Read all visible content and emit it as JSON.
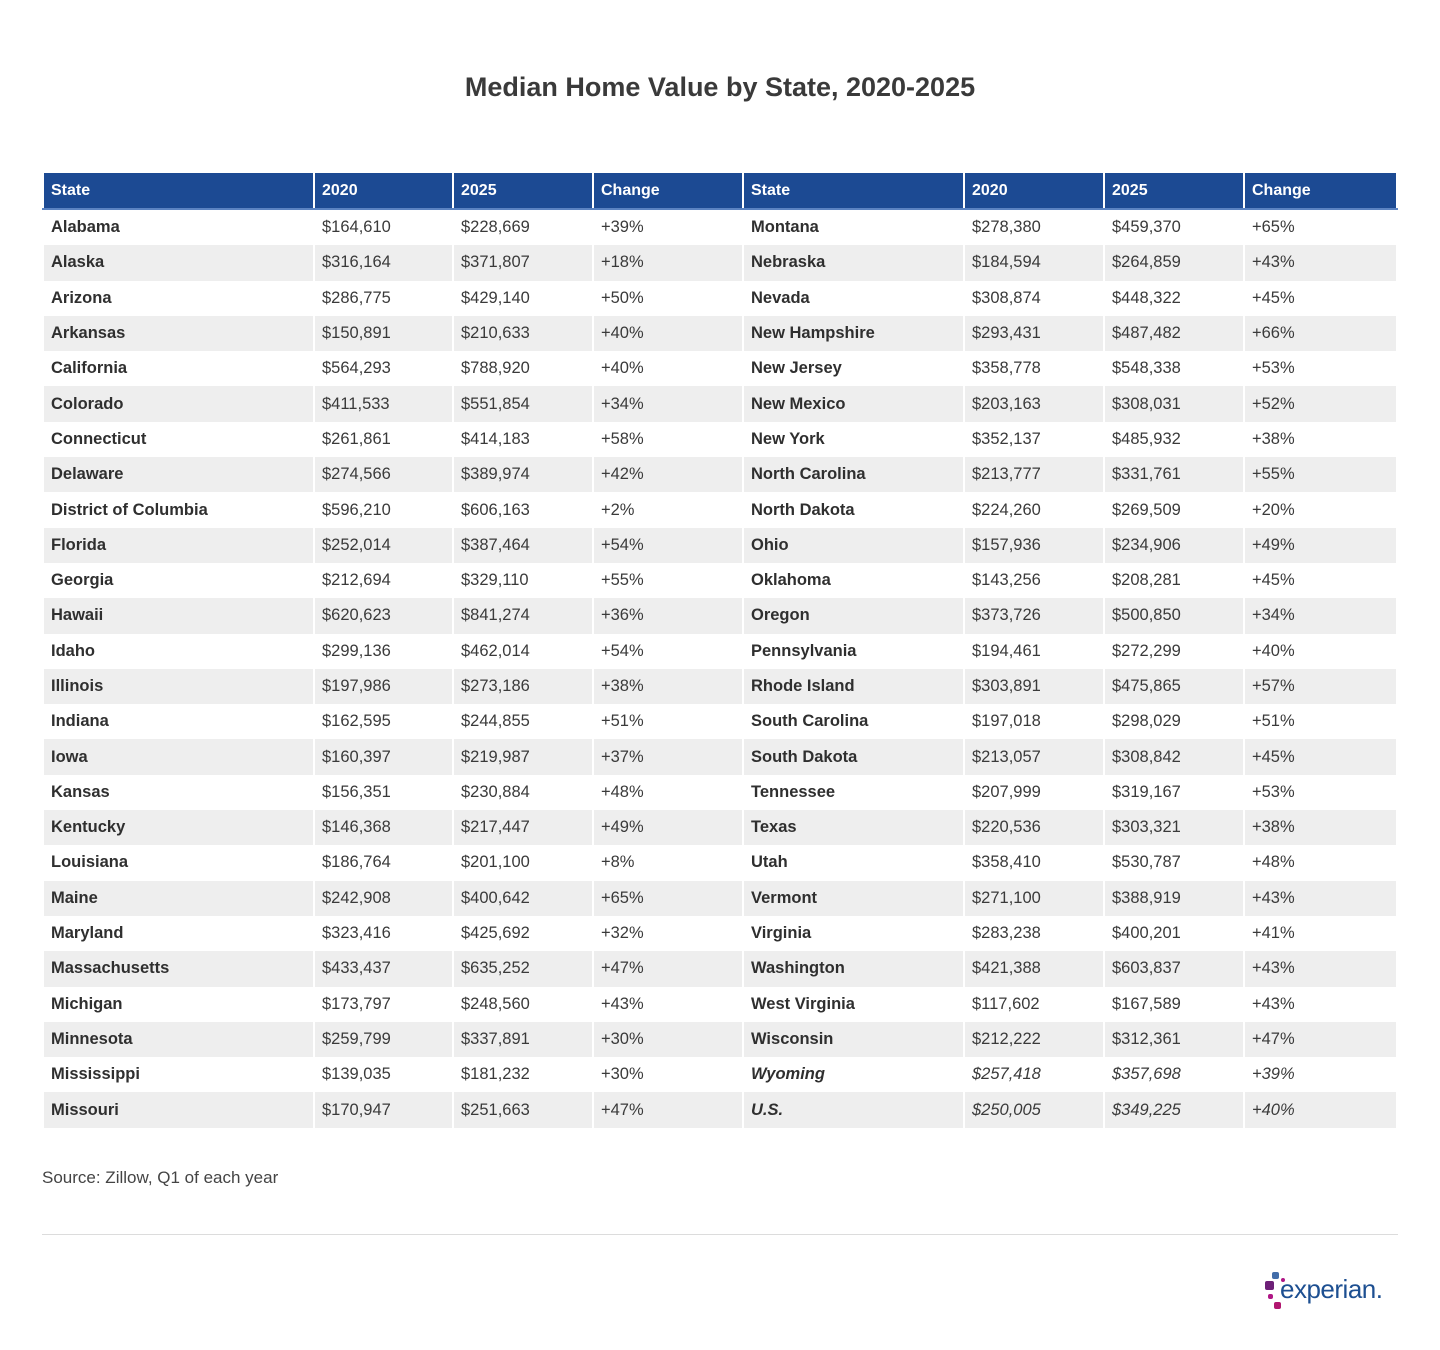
{
  "title": "Median Home Value by State, 2020-2025",
  "headers": [
    "State",
    "2020",
    "2025",
    "Change",
    "State",
    "2020",
    "2025",
    "Change"
  ],
  "source": "Source: Zillow, Q1 of each year",
  "logo": {
    "text": "experian.",
    "colors": [
      "#1d4f91",
      "#6d2077",
      "#af1685",
      "#426da9"
    ]
  },
  "colors": {
    "header_bg": "#1c4a93",
    "stripe": "#eeeeee"
  },
  "chart_data": {
    "type": "table",
    "title": "Median Home Value by State, 2020-2025",
    "columns": [
      "State",
      "2020",
      "2025",
      "Change"
    ],
    "rows": [
      {
        "left": [
          "Alabama",
          "$164,610",
          "$228,669",
          "+39%"
        ],
        "right": [
          "Montana",
          "$278,380",
          "$459,370",
          "+65%"
        ]
      },
      {
        "left": [
          "Alaska",
          "$316,164",
          "$371,807",
          "+18%"
        ],
        "right": [
          "Nebraska",
          "$184,594",
          "$264,859",
          "+43%"
        ]
      },
      {
        "left": [
          "Arizona",
          "$286,775",
          "$429,140",
          "+50%"
        ],
        "right": [
          "Nevada",
          "$308,874",
          "$448,322",
          "+45%"
        ]
      },
      {
        "left": [
          "Arkansas",
          "$150,891",
          "$210,633",
          "+40%"
        ],
        "right": [
          "New Hampshire",
          "$293,431",
          "$487,482",
          "+66%"
        ]
      },
      {
        "left": [
          "California",
          "$564,293",
          "$788,920",
          "+40%"
        ],
        "right": [
          "New Jersey",
          "$358,778",
          "$548,338",
          "+53%"
        ]
      },
      {
        "left": [
          "Colorado",
          "$411,533",
          "$551,854",
          "+34%"
        ],
        "right": [
          "New Mexico",
          "$203,163",
          "$308,031",
          "+52%"
        ]
      },
      {
        "left": [
          "Connecticut",
          "$261,861",
          "$414,183",
          "+58%"
        ],
        "right": [
          "New York",
          "$352,137",
          "$485,932",
          "+38%"
        ]
      },
      {
        "left": [
          "Delaware",
          "$274,566",
          "$389,974",
          "+42%"
        ],
        "right": [
          "North Carolina",
          "$213,777",
          "$331,761",
          "+55%"
        ]
      },
      {
        "left": [
          "District of Columbia",
          "$596,210",
          "$606,163",
          "+2%"
        ],
        "right": [
          "North Dakota",
          "$224,260",
          "$269,509",
          "+20%"
        ]
      },
      {
        "left": [
          "Florida",
          "$252,014",
          "$387,464",
          "+54%"
        ],
        "right": [
          "Ohio",
          "$157,936",
          "$234,906",
          "+49%"
        ]
      },
      {
        "left": [
          "Georgia",
          "$212,694",
          "$329,110",
          "+55%"
        ],
        "right": [
          "Oklahoma",
          "$143,256",
          "$208,281",
          "+45%"
        ]
      },
      {
        "left": [
          "Hawaii",
          "$620,623",
          "$841,274",
          "+36%"
        ],
        "right": [
          "Oregon",
          "$373,726",
          "$500,850",
          "+34%"
        ]
      },
      {
        "left": [
          "Idaho",
          "$299,136",
          "$462,014",
          "+54%"
        ],
        "right": [
          "Pennsylvania",
          "$194,461",
          "$272,299",
          "+40%"
        ]
      },
      {
        "left": [
          "Illinois",
          "$197,986",
          "$273,186",
          "+38%"
        ],
        "right": [
          "Rhode Island",
          "$303,891",
          "$475,865",
          "+57%"
        ]
      },
      {
        "left": [
          "Indiana",
          "$162,595",
          "$244,855",
          "+51%"
        ],
        "right": [
          "South Carolina",
          "$197,018",
          "$298,029",
          "+51%"
        ]
      },
      {
        "left": [
          "Iowa",
          "$160,397",
          "$219,987",
          "+37%"
        ],
        "right": [
          "South Dakota",
          "$213,057",
          "$308,842",
          "+45%"
        ]
      },
      {
        "left": [
          "Kansas",
          "$156,351",
          "$230,884",
          "+48%"
        ],
        "right": [
          "Tennessee",
          "$207,999",
          "$319,167",
          "+53%"
        ]
      },
      {
        "left": [
          "Kentucky",
          "$146,368",
          "$217,447",
          "+49%"
        ],
        "right": [
          "Texas",
          "$220,536",
          "$303,321",
          "+38%"
        ]
      },
      {
        "left": [
          "Louisiana",
          "$186,764",
          "$201,100",
          "+8%"
        ],
        "right": [
          "Utah",
          "$358,410",
          "$530,787",
          "+48%"
        ]
      },
      {
        "left": [
          "Maine",
          "$242,908",
          "$400,642",
          "+65%"
        ],
        "right": [
          "Vermont",
          "$271,100",
          "$388,919",
          "+43%"
        ]
      },
      {
        "left": [
          "Maryland",
          "$323,416",
          "$425,692",
          "+32%"
        ],
        "right": [
          "Virginia",
          "$283,238",
          "$400,201",
          "+41%"
        ]
      },
      {
        "left": [
          "Massachusetts",
          "$433,437",
          "$635,252",
          "+47%"
        ],
        "right": [
          "Washington",
          "$421,388",
          "$603,837",
          "+43%"
        ]
      },
      {
        "left": [
          "Michigan",
          "$173,797",
          "$248,560",
          "+43%"
        ],
        "right": [
          "West Virginia",
          "$117,602",
          "$167,589",
          "+43%"
        ]
      },
      {
        "left": [
          "Minnesota",
          "$259,799",
          "$337,891",
          "+30%"
        ],
        "right": [
          "Wisconsin",
          "$212,222",
          "$312,361",
          "+47%"
        ]
      },
      {
        "left": [
          "Mississippi",
          "$139,035",
          "$181,232",
          "+30%"
        ],
        "right": [
          "Wyoming",
          "$257,418",
          "$357,698",
          "+39%"
        ],
        "right_italic": true
      },
      {
        "left": [
          "Missouri",
          "$170,947",
          "$251,663",
          "+47%"
        ],
        "right": [
          "U.S.",
          "$250,005",
          "$349,225",
          "+40%"
        ],
        "right_italic": true
      }
    ]
  }
}
